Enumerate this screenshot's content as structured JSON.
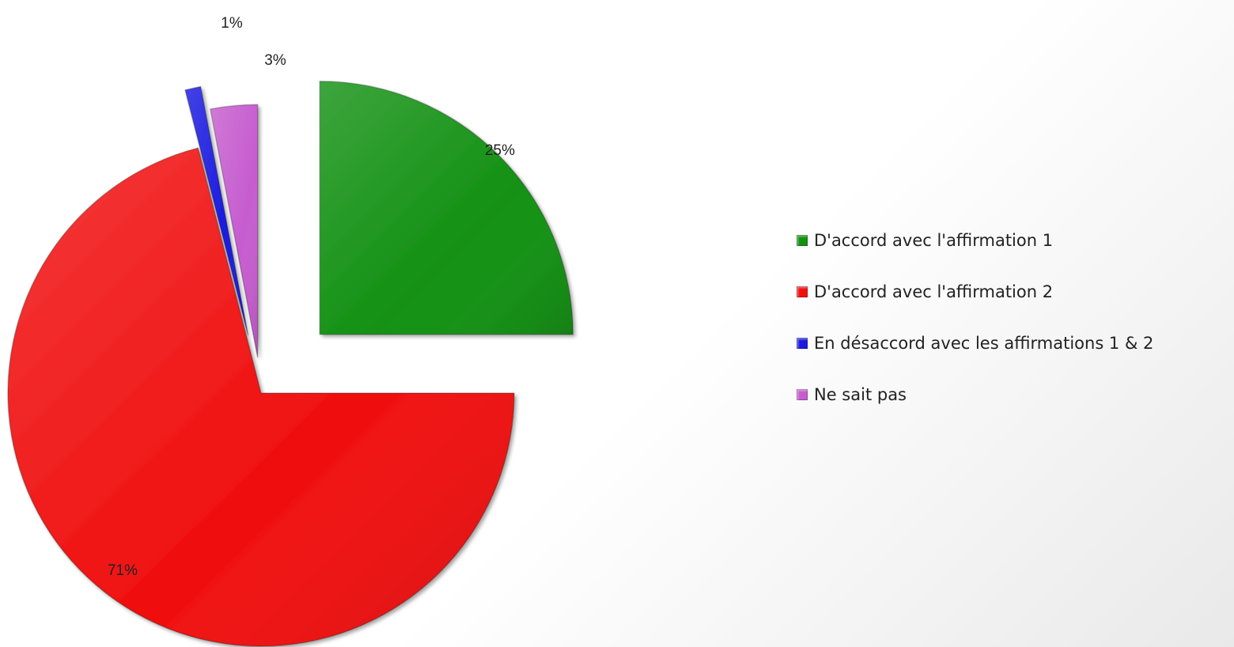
{
  "chart_data": {
    "type": "pie",
    "title": "",
    "categories": [
      "D'accord avec l'affirmation 1",
      "D'accord avec l'affirmation 2",
      "En désaccord avec les affirmations 1 & 2",
      "Ne sait pas"
    ],
    "values": [
      25,
      71,
      1,
      3
    ],
    "data_labels": [
      "25%",
      "71%",
      "1%",
      "3%"
    ],
    "colors": [
      "#139113",
      "#f00f0f",
      "#1a1ae0",
      "#c65ccf"
    ],
    "exploded": true,
    "legend_position": "right"
  },
  "legend": {
    "items": [
      {
        "label": "D'accord avec l'affirmation 1",
        "color": "#139113"
      },
      {
        "label": "D'accord avec l'affirmation 2",
        "color": "#f00f0f"
      },
      {
        "label": "En désaccord avec les affirmations 1 & 2",
        "color": "#1a1ae0"
      },
      {
        "label": "Ne sait pas",
        "color": "#c65ccf"
      }
    ]
  }
}
